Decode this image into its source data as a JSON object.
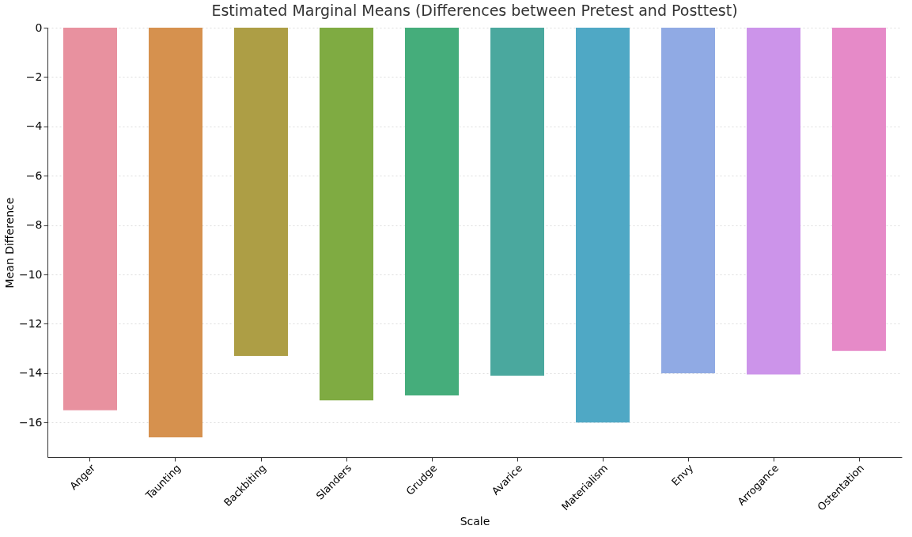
{
  "chart_data": {
    "type": "bar",
    "title": "Estimated Marginal Means (Differences between Pretest and Posttest)",
    "xlabel": "Scale",
    "ylabel": "Mean Difference",
    "categories": [
      "Anger",
      "Taunting",
      "Backbiting",
      "Slanders",
      "Grudge",
      "Avarice",
      "Materialism",
      "Envy",
      "Arrogance",
      "Ostentation"
    ],
    "values": [
      -15.5,
      -16.6,
      -13.3,
      -15.1,
      -14.9,
      -14.1,
      -16.0,
      -14.0,
      -14.05,
      -13.1
    ],
    "colors": [
      "#e8919f",
      "#d6914e",
      "#ad9e45",
      "#7fab42",
      "#45ad7b",
      "#4aa89e",
      "#4fa8c5",
      "#90aae4",
      "#cc94ea",
      "#e68ac8"
    ],
    "ylim": [
      -17.4,
      0
    ],
    "yticks": [
      0,
      -2,
      -4,
      -6,
      -8,
      -10,
      -12,
      -14,
      -16
    ],
    "grid": "y"
  }
}
